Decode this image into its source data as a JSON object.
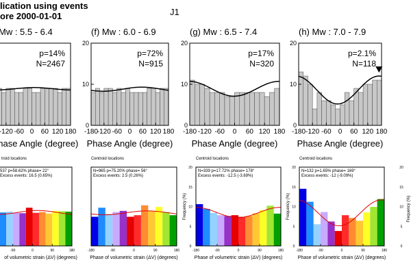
{
  "figure": {
    "title_line1": "lication using events",
    "title_line2": "ore 2000-01-01",
    "label": "J1"
  },
  "chart_data": [
    {
      "type": "bar",
      "panel": "top",
      "title": "Mw : 5.5 - 6.4",
      "xlabel": "Phase Angle (degree)",
      "ylabel": "",
      "xlim": [
        -180,
        180
      ],
      "ylim": [
        0,
        20
      ],
      "xticks": [
        "-120",
        "-60",
        "0",
        "60",
        "120",
        "180"
      ],
      "yticks": [],
      "stats": [
        "p=14%",
        "N=2467"
      ],
      "values": [
        9,
        9,
        8,
        9,
        9,
        8,
        8,
        9,
        9,
        8,
        8,
        9,
        9,
        9,
        9,
        8,
        9,
        9
      ],
      "curve_mean": 8.9,
      "curve_amp": 0.3,
      "curve_phase": 10
    },
    {
      "type": "bar",
      "panel": "top",
      "title": "(f) Mw : 6.0 - 6.9",
      "xlabel": "Phase Angle (degree)",
      "ylabel": "",
      "xlim": [
        -180,
        180
      ],
      "ylim": [
        0,
        20
      ],
      "xticks": [
        "-180",
        "-120",
        "-60",
        "0",
        "60",
        "120",
        "180"
      ],
      "yticks": [
        "0",
        "10",
        "20"
      ],
      "stats": [
        "p=72%",
        "N=915"
      ],
      "values": [
        8,
        9,
        8,
        9,
        9,
        8,
        9,
        8,
        9,
        8,
        8,
        8,
        8,
        9,
        9,
        8,
        9,
        9
      ],
      "curve_mean": 8.8,
      "curve_amp": 0.5,
      "curve_phase": 56
    },
    {
      "type": "bar",
      "panel": "top",
      "title": "(g) Mw : 6.5 - 7.4",
      "xlabel": "Phase Angle (degree)",
      "ylabel": "",
      "xlim": [
        -180,
        180
      ],
      "ylim": [
        0,
        20
      ],
      "xticks": [
        "-180",
        "-120",
        "-60",
        "0",
        "60",
        "120",
        "180"
      ],
      "yticks": [
        "0",
        "10",
        "20"
      ],
      "stats": [
        "p=17%",
        "N=320"
      ],
      "values": [
        11,
        10,
        10,
        9,
        8,
        8,
        8,
        7,
        7,
        8,
        8,
        8,
        8,
        8,
        8,
        7,
        8,
        9
      ],
      "curve_mean": 8.9,
      "curve_amp": 1.8,
      "curve_phase": 178
    },
    {
      "type": "bar",
      "panel": "top",
      "title": "(h) Mw : 7.0 - 7.9",
      "xlabel": "Phase Angle (degree)",
      "ylabel": "",
      "xlim": [
        -180,
        180
      ],
      "ylim": [
        0,
        20
      ],
      "xticks": [
        "-180",
        "-120",
        "-60",
        "0",
        "60",
        "120",
        "180"
      ],
      "yticks": [
        "0",
        "10",
        "20"
      ],
      "stats": [
        "p=2.1%",
        "N=118"
      ],
      "values": [
        13,
        12,
        10,
        4,
        8,
        6,
        6,
        5,
        4,
        5,
        8,
        6,
        9,
        8,
        10,
        10,
        11,
        11
      ],
      "curve_mean": 8.6,
      "curve_amp": 3.4,
      "curve_phase": 169,
      "marker_phase": 169
    },
    {
      "type": "bar",
      "panel": "bottom",
      "title": "troid locations",
      "xlabel": "of volumetric strain (ΔV) (degrees)",
      "ylabel": "",
      "xlim": [
        -180,
        180
      ],
      "ylim": [
        0,
        20
      ],
      "xticks": [
        "-90",
        "0",
        "90",
        "180"
      ],
      "yticks": [],
      "stats": [
        "537   p=58.62%   phase= 22°",
        "Excess events: 16.5 (0.65%)"
      ],
      "values": [
        8.8,
        8.5,
        8.7,
        8.4,
        8.3,
        9.7,
        8.4,
        8.6,
        8.2,
        8.9,
        8.8,
        8.7
      ],
      "curve_mean": 8.5,
      "curve_amp": 0.5,
      "curve_phase": 22
    },
    {
      "type": "bar",
      "panel": "bottom",
      "title": "Centroid locations",
      "xlabel": "Phase of volumetric strain (ΔV) (degrees)",
      "ylabel": "",
      "xlim": [
        -180,
        180
      ],
      "ylim": [
        0,
        20
      ],
      "xticks": [
        "-180",
        "-90",
        "0",
        "90",
        "180"
      ],
      "yticks": [],
      "stats": [
        "N=965   p=75.20%   phase= 56°",
        "Excess events: 2.5 (0.26%)"
      ],
      "values": [
        7.4,
        9.7,
        8.1,
        8.6,
        8.9,
        7.4,
        7.8,
        10.3,
        8.8,
        9.9,
        8.6,
        7.8
      ],
      "curve_mean": 8.4,
      "curve_amp": 0.5,
      "curve_phase": 56
    },
    {
      "type": "bar",
      "panel": "bottom",
      "title": "Centroid locations",
      "xlabel": "Phase of volumetric strain (ΔV) (degrees)",
      "ylabel": "Frequency (%)",
      "xlim": [
        -180,
        180
      ],
      "ylim": [
        0,
        20
      ],
      "xticks": [
        "-180",
        "-90",
        "0",
        "90",
        "180"
      ],
      "yticks": [
        "0",
        "5",
        "10",
        "15",
        "20"
      ],
      "stats": [
        "N=339   p=17.72%   phase= 178°",
        "Excess events: -12.5 (-3.69%)"
      ],
      "values": [
        10.6,
        9.4,
        8.4,
        7.8,
        7.6,
        7.8,
        7.4,
        7.6,
        8.3,
        9.1,
        10.2,
        8.2
      ],
      "curve_mean": 8.5,
      "curve_amp": 1.3,
      "curve_phase": 178
    },
    {
      "type": "bar",
      "panel": "bottom",
      "title": "Centroid locations",
      "xlabel": "Phase of volumetric strain (ΔV) (degrees)",
      "ylabel": "Frequency (%)",
      "xlim": [
        -180,
        180
      ],
      "ylim": [
        0,
        20
      ],
      "xticks": [
        "-180",
        "-90",
        "0",
        "90",
        "180"
      ],
      "yticks": [
        "0",
        "5",
        "10",
        "15",
        "20"
      ],
      "stats": [
        "N=132   p=1.65%   phase= 169°",
        "Excess events: -12 (-9.09%)"
      ],
      "values": [
        14.5,
        11.2,
        5.5,
        8.6,
        6.2,
        3.8,
        7.8,
        7.1,
        6.4,
        8.5,
        9.9,
        11.9
      ],
      "curve_mean": 8.4,
      "curve_amp": 3.3,
      "curve_phase": 169
    },
    {
      "type": "axis",
      "panel": "bottom-right",
      "ylabel": "Frequency (%)",
      "yticks": [
        "0",
        "5",
        "10",
        "15",
        "20"
      ]
    }
  ],
  "colors": {
    "bar_gray": "#c8c8c8",
    "phase_bars": [
      "#0000e6",
      "#1e8cff",
      "#96d2ff",
      "#c8aaff",
      "#9632c8",
      "#e60000",
      "#ff2b2b",
      "#ff8c32",
      "#ffc832",
      "#ffff28",
      "#a0e632",
      "#00a000"
    ],
    "fit_curve_top": "#000000",
    "fit_curve_bottom": "#e00000"
  }
}
